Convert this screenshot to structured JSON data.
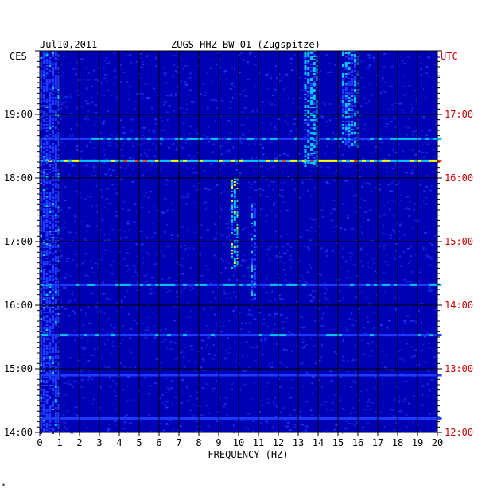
{
  "header": {
    "date": "Jul10,2011",
    "station": "ZUGS HHZ BW 01 (Zugspitze)",
    "left_tz": "CES",
    "right_tz": "UTC"
  },
  "colors": {
    "background": "#0000b4",
    "grid": "#000000",
    "utc_label": "#cc0000",
    "activity_low": "#1e3cff",
    "activity_mid": "#00c8ff",
    "activity_high": "#ffff00",
    "activity_peak": "#ff4000"
  },
  "footer_mark": "*",
  "chart_data": {
    "type": "heatmap",
    "title": "ZUGS HHZ BW 01 (Zugspitze)",
    "xlabel": "FREQUENCY (HZ)",
    "xlim": [
      0,
      20
    ],
    "x_ticks": [
      "0",
      "1",
      "2",
      "3",
      "4",
      "5",
      "6",
      "7",
      "8",
      "9",
      "10",
      "11",
      "12",
      "13",
      "14",
      "15",
      "16",
      "17",
      "18",
      "19",
      "20"
    ],
    "ylim_ces_hours": [
      14,
      20
    ],
    "y_ticks_left": [
      "19:00",
      "18:00",
      "17:00",
      "16:00",
      "15:00",
      "14:00"
    ],
    "y_ticks_right": [
      "17:00",
      "16:00",
      "15:00",
      "14:00",
      "13:00",
      "12:00"
    ],
    "noise_bands_hz": [
      {
        "f": [
          9.6,
          10.0
        ],
        "t_ces": [
          16.6,
          18.0
        ],
        "level": 0.75
      },
      {
        "f": [
          10.6,
          10.9
        ],
        "t_ces": [
          16.1,
          17.6
        ],
        "level": 0.55
      },
      {
        "f": [
          13.3,
          14.0
        ],
        "t_ces": [
          18.2,
          20.0
        ],
        "level": 0.65
      },
      {
        "f": [
          15.2,
          16.0
        ],
        "t_ces": [
          18.5,
          20.0
        ],
        "level": 0.55
      },
      {
        "f": [
          0.0,
          1.0
        ],
        "t_ces": [
          14.0,
          20.0
        ],
        "level": 0.45
      }
    ],
    "broadband_events_ces": [
      {
        "t": 18.27,
        "level": 0.85
      },
      {
        "t": 16.32,
        "level": 0.55
      },
      {
        "t": 18.62,
        "level": 0.6
      },
      {
        "t": 15.53,
        "level": 0.5
      },
      {
        "t": 14.9,
        "level": 0.45
      },
      {
        "t": 14.22,
        "level": 0.4
      }
    ]
  }
}
